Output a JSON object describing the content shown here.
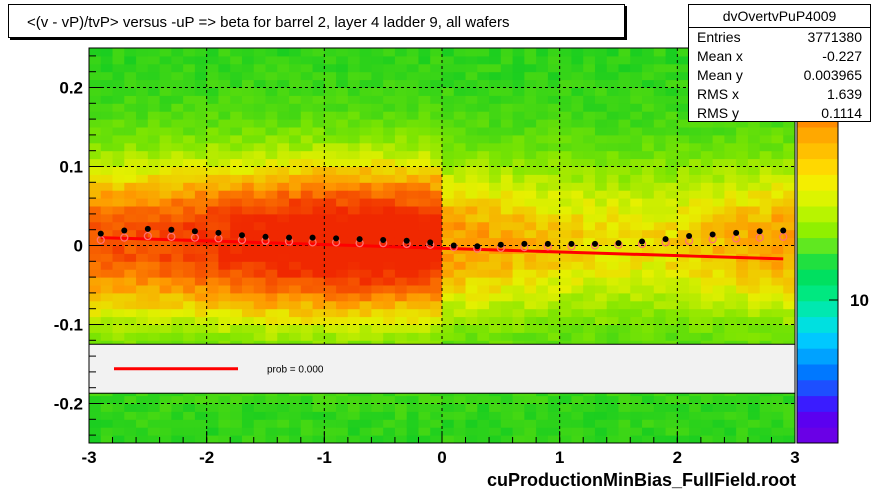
{
  "chart_data": {
    "type": "heatmap",
    "title": "<(v - vP)/tvP> versus  -uP => beta for barrel 2, layer 4 ladder 9, all wafers",
    "xlabel": "",
    "ylabel": "",
    "xlim": [
      -3,
      3
    ],
    "ylim": [
      -0.25,
      0.25
    ],
    "x_ticks": [
      "-3",
      "-2",
      "-1",
      "0",
      "1",
      "2",
      "3"
    ],
    "y_ticks": [
      "-0.2",
      "-0.1",
      "0",
      "0.1",
      "0.2"
    ],
    "grid": true,
    "colorbar": {
      "tick_labels": [
        "10"
      ]
    },
    "series": [
      {
        "marker": "black-dots",
        "x": [
          -2.9,
          -2.7,
          -2.5,
          -2.3,
          -2.1,
          -1.9,
          -1.7,
          -1.5,
          -1.3,
          -1.1,
          -0.9,
          -0.7,
          -0.5,
          -0.3,
          -0.1,
          0.1,
          0.3,
          0.5,
          0.7,
          0.9,
          1.1,
          1.3,
          1.5,
          1.7,
          1.9,
          2.1,
          2.3,
          2.5,
          2.7,
          2.9
        ],
        "y": [
          0.015,
          0.019,
          0.021,
          0.02,
          0.018,
          0.016,
          0.013,
          0.011,
          0.01,
          0.01,
          0.009,
          0.008,
          0.007,
          0.006,
          0.004,
          0.0,
          -0.001,
          0.001,
          0.002,
          0.002,
          0.002,
          0.002,
          0.003,
          0.005,
          0.008,
          0.012,
          0.014,
          0.016,
          0.018,
          0.019
        ]
      },
      {
        "marker": "pink-circles",
        "x": [
          -2.9,
          -2.7,
          -2.5,
          -2.3,
          -2.1,
          -1.9,
          -1.7,
          -1.5,
          -1.3,
          -1.1,
          -0.9,
          -0.7,
          -0.5,
          -0.3,
          -0.1,
          0.1,
          0.3,
          0.5,
          0.7,
          0.9,
          1.1,
          1.3,
          1.5,
          1.7,
          1.9,
          2.1,
          2.3,
          2.5,
          2.7,
          2.9
        ],
        "y": [
          0.007,
          0.01,
          0.012,
          0.011,
          0.01,
          0.009,
          0.007,
          0.006,
          0.005,
          0.004,
          0.004,
          0.003,
          0.003,
          0.002,
          0.001,
          -0.002,
          -0.004,
          -0.003,
          -0.002,
          -0.001,
          -0.001,
          0.0,
          0.001,
          0.002,
          0.004,
          0.006,
          0.008,
          0.009,
          0.01,
          0.011
        ]
      },
      {
        "marker": "red-line",
        "x": [
          -2.9,
          2.9
        ],
        "y": [
          0.01,
          -0.017
        ]
      }
    ],
    "fit_legend": {
      "label": "prob = 0.000"
    },
    "stats": {
      "name": "dvOvertvPuP4009",
      "entries": [
        "Entries",
        "3771380"
      ],
      "mean_x": [
        "Mean x",
        "-0.227"
      ],
      "mean_y": [
        "Mean y",
        "0.003965"
      ],
      "rms_x": [
        "RMS x",
        "1.639"
      ],
      "rms_y": [
        "RMS y",
        "0.1114"
      ]
    },
    "footer": "cuProductionMinBias_FullField.root"
  }
}
